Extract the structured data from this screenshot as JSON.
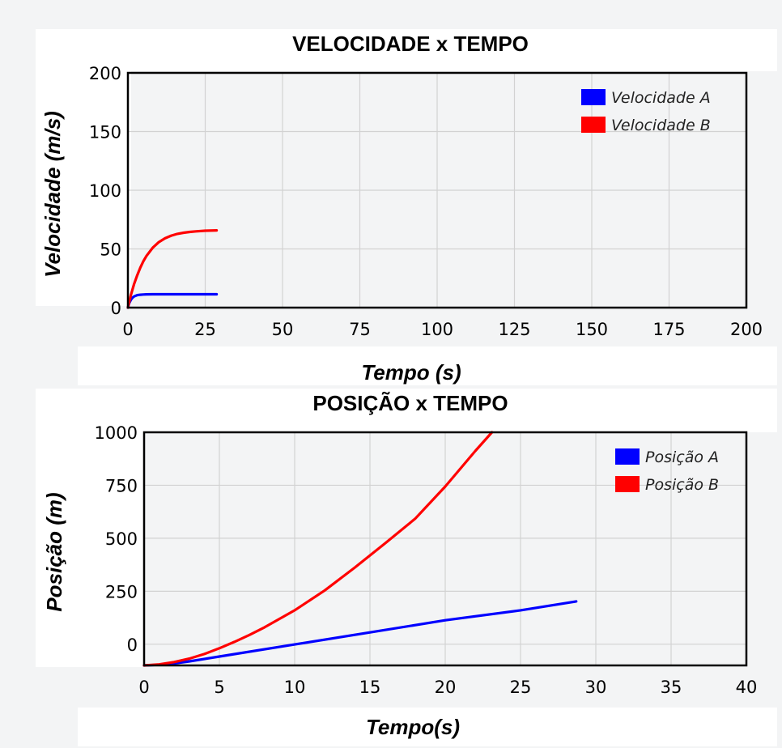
{
  "chart_data": [
    {
      "type": "line",
      "title": "VELOCIDADE x TEMPO",
      "xlabel": "Tempo (s)",
      "ylabel": "Velocidade (m/s)",
      "xlim": [
        0,
        200
      ],
      "ylim": [
        0,
        200
      ],
      "xticks": [
        "0",
        "25",
        "50",
        "75",
        "100",
        "125",
        "150",
        "175",
        "200"
      ],
      "yticks": [
        "0",
        "50",
        "100",
        "150",
        "200"
      ],
      "grid": true,
      "legend": "top-right",
      "series": [
        {
          "name": "Velocidade A",
          "color": "#0000ff",
          "x": [
            0,
            0.5,
            1,
            1.5,
            2,
            3,
            4,
            5,
            6,
            8,
            10,
            15,
            20,
            25,
            28.7
          ],
          "y": [
            0,
            4.2,
            6.8,
            8.5,
            9.5,
            10.6,
            11.0,
            11.2,
            11.3,
            11.4,
            11.4,
            11.4,
            11.4,
            11.4,
            11.4
          ]
        },
        {
          "name": "Velocidade B",
          "color": "#ff0000",
          "x": [
            0,
            1,
            2,
            3,
            4,
            5,
            6,
            8,
            10,
            12,
            14,
            16,
            18,
            20,
            22,
            25,
            28.7
          ],
          "y": [
            0,
            11,
            20,
            27.5,
            34,
            39.5,
            44,
            51,
            55.8,
            59,
            61.3,
            62.8,
            63.8,
            64.5,
            65,
            65.5,
            65.8
          ]
        }
      ]
    },
    {
      "type": "line",
      "title": "POSIÇÃO x TEMPO",
      "xlabel": "Tempo(s)",
      "ylabel": "Posição (m)",
      "xlim": [
        0,
        40
      ],
      "ylim": [
        -100,
        1000
      ],
      "xticks": [
        "0",
        "5",
        "10",
        "15",
        "20",
        "25",
        "30",
        "35",
        "40"
      ],
      "yticks": [
        "0",
        "250",
        "500",
        "750",
        "1000"
      ],
      "grid": true,
      "legend": "top-right",
      "series": [
        {
          "name": "Posição A",
          "color": "#0000ff",
          "x": [
            0,
            1,
            2,
            3,
            5,
            10,
            15,
            20,
            25,
            28.7
          ],
          "y": [
            -100,
            -97,
            -91,
            -81,
            -58,
            -1,
            56,
            113,
            160,
            202
          ]
        },
        {
          "name": "Posição B",
          "color": "#ff0000",
          "x": [
            0,
            1,
            2,
            3,
            4,
            5,
            6,
            7,
            8,
            10,
            12,
            14,
            16,
            18,
            20,
            22,
            23.1
          ],
          "y": [
            -100,
            -95,
            -84,
            -68,
            -46,
            -19,
            11,
            44,
            80,
            160,
            254,
            362,
            476,
            592,
            744,
            912,
            1000
          ]
        }
      ]
    }
  ]
}
